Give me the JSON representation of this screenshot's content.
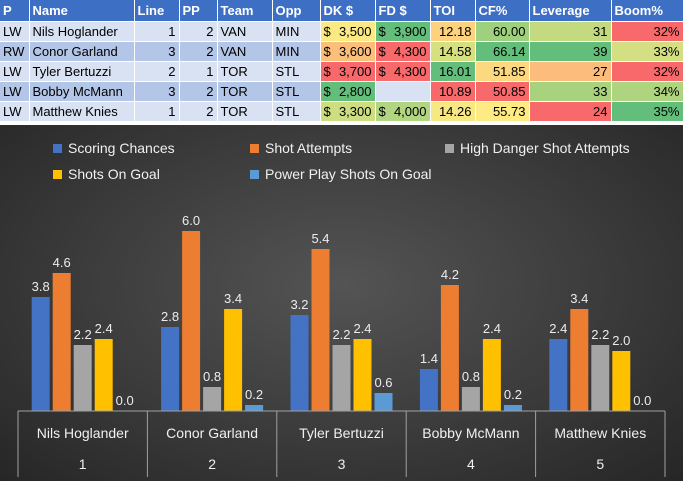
{
  "table": {
    "headers": [
      "P",
      "Name",
      "Line",
      "PP",
      "Team",
      "Opp",
      "DK $",
      "FD $",
      "TOI",
      "CF%",
      "Leverage",
      "Boom%"
    ],
    "rows": [
      {
        "pos": "LW",
        "name": "Nils Hoglander",
        "line": "1",
        "pp": "2",
        "team": "VAN",
        "opp": "MIN",
        "dk": "3,500",
        "fd": "3,900",
        "toi": "12.18",
        "cf": "60.00",
        "leverage": "31",
        "boom": "32%"
      },
      {
        "pos": "RW",
        "name": "Conor Garland",
        "line": "3",
        "pp": "2",
        "team": "VAN",
        "opp": "MIN",
        "dk": "3,600",
        "fd": "4,300",
        "toi": "14.58",
        "cf": "66.14",
        "leverage": "39",
        "boom": "33%"
      },
      {
        "pos": "LW",
        "name": "Tyler Bertuzzi",
        "line": "2",
        "pp": "1",
        "team": "TOR",
        "opp": "STL",
        "dk": "3,700",
        "fd": "4,300",
        "toi": "16.01",
        "cf": "51.85",
        "leverage": "27",
        "boom": "32%"
      },
      {
        "pos": "LW",
        "name": "Bobby McMann",
        "line": "3",
        "pp": "2",
        "team": "TOR",
        "opp": "STL",
        "dk": "2,800",
        "fd": "",
        "toi": "10.89",
        "cf": "50.85",
        "leverage": "33",
        "boom": "34%"
      },
      {
        "pos": "LW",
        "name": "Matthew Knies",
        "line": "1",
        "pp": "2",
        "team": "TOR",
        "opp": "STL",
        "dk": "3,300",
        "fd": "4,000",
        "toi": "14.26",
        "cf": "55.73",
        "leverage": "24",
        "boom": "35%"
      }
    ],
    "currency_symbol": "$",
    "cell_colors": {
      "dk": [
        "#fbea84",
        "#fcbf7b",
        "#f8696b",
        "#63be7b",
        "#cddd82"
      ],
      "fd": [
        "#63be7b",
        "#f8696b",
        "#f8696b",
        "#d9e2f3",
        "#b1d580"
      ],
      "toi": [
        "#fdd27f",
        "#d6e081",
        "#63be7b",
        "#f8696b",
        "#f7e883"
      ],
      "cf": [
        "#9fd07e",
        "#63be7b",
        "#fcd980",
        "#f8696b",
        "#ffeb84"
      ],
      "leverage": [
        "#c3da81",
        "#63be7b",
        "#fcbc7b",
        "#a9d27f",
        "#f8696b"
      ],
      "boom": [
        "#f8696b",
        "#d3df82",
        "#f8696b",
        "#afd47f",
        "#63be7b"
      ]
    }
  },
  "chart_data": {
    "type": "bar",
    "categories": [
      "Nils Hoglander",
      "Conor Garland",
      "Tyler Bertuzzi",
      "Bobby McMann",
      "Matthew Knies"
    ],
    "category_indices": [
      "1",
      "2",
      "3",
      "4",
      "5"
    ],
    "series": [
      {
        "name": "Scoring Chances",
        "color": "#4472c4",
        "values": [
          3.8,
          2.8,
          3.2,
          1.4,
          2.4
        ]
      },
      {
        "name": "Shot Attempts",
        "color": "#ed7d31",
        "values": [
          4.6,
          6.0,
          5.4,
          4.2,
          3.4
        ]
      },
      {
        "name": "High Danger Shot Attempts",
        "color": "#a5a5a5",
        "values": [
          2.2,
          0.8,
          2.2,
          0.8,
          2.2
        ]
      },
      {
        "name": "Shots On Goal",
        "color": "#ffc000",
        "values": [
          2.4,
          3.4,
          2.4,
          2.4,
          2.0
        ]
      },
      {
        "name": "Power Play Shots On Goal",
        "color": "#5b9bd5",
        "values": [
          0.0,
          0.2,
          0.6,
          0.2,
          0.0
        ]
      }
    ],
    "ylim": [
      0,
      6.0
    ],
    "data_labels": true,
    "legend_position": "top",
    "title": "",
    "xlabel": "",
    "ylabel": "",
    "gridlines": false
  }
}
